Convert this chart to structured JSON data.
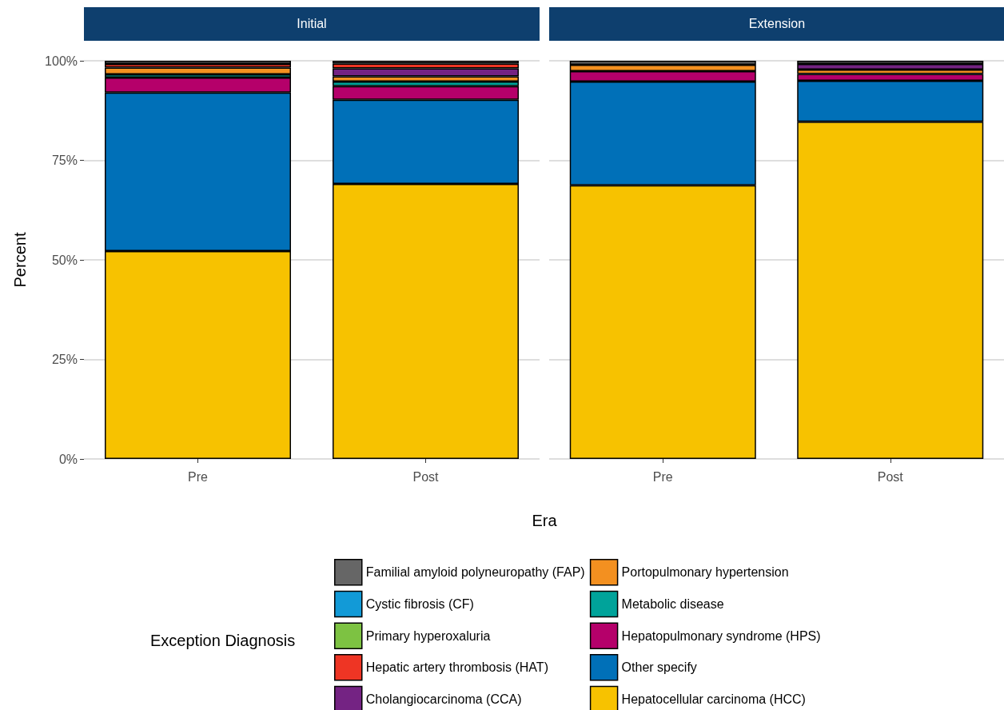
{
  "chart_data": [
    {
      "type": "bar",
      "title": "Initial",
      "xlabel": "Era",
      "ylabel": "Percent",
      "legend_title": "Exception Diagnosis",
      "categories": [
        "Pre",
        "Post"
      ],
      "stacked": true,
      "ylim": [
        0,
        100
      ],
      "yticks": [
        {
          "value": 0,
          "label": "0%"
        },
        {
          "value": 25,
          "label": "25%"
        },
        {
          "value": 50,
          "label": "50%"
        },
        {
          "value": 75,
          "label": "75%"
        },
        {
          "value": 100,
          "label": "100%"
        }
      ],
      "grid": "y",
      "legend": "bottom",
      "series": [
        {
          "name": "Hepatocellular carcinoma (HCC)",
          "color": "#f7c200",
          "values": [
            52.2,
            69.1
          ]
        },
        {
          "name": "Other specify",
          "color": "#0070b8",
          "values": [
            39.8,
            21.1
          ]
        },
        {
          "name": "Hepatopulmonary syndrome (HPS)",
          "color": "#b5006a",
          "values": [
            3.8,
            3.4
          ]
        },
        {
          "name": "Metabolic disease",
          "color": "#00a39a",
          "values": [
            0.8,
            1.2
          ]
        },
        {
          "name": "Portopulmonary hypertension",
          "color": "#f39020",
          "values": [
            1.7,
            1.3
          ]
        },
        {
          "name": "Cholangiocarcinoma (CCA)",
          "color": "#742383",
          "values": [
            null,
            2.0
          ]
        },
        {
          "name": "Hepatic artery thrombosis (HAT)",
          "color": "#ee3524",
          "values": [
            0.9,
            1.2
          ]
        },
        {
          "name": "Primary hyperoxaluria",
          "color": "#7dc242",
          "values": [
            null,
            null
          ]
        },
        {
          "name": "Cystic fibrosis (CF)",
          "color": "#129ad7",
          "values": [
            null,
            null
          ]
        },
        {
          "name": "Familial amyloid polyneuropathy (FAP)",
          "color": "#666666",
          "values": [
            0.8,
            0.7
          ]
        }
      ]
    },
    {
      "type": "bar",
      "title": "Extension",
      "categories": [
        "Pre",
        "Post"
      ],
      "stacked": true,
      "ylim": [
        0,
        100
      ],
      "yticks": [
        0,
        25,
        50,
        75,
        100
      ],
      "grid": "y",
      "tick_labels": "x",
      "series": [
        {
          "color": "#f7c200",
          "values": [
            68.7,
            84.7
          ]
        },
        {
          "color": "#0070b8",
          "values": [
            26.1,
            10.3
          ]
        },
        {
          "color": "#b5006a",
          "values": [
            2.6,
            1.7
          ]
        },
        {
          "color": "#f39020",
          "values": [
            1.6,
            1.1
          ]
        },
        {
          "color": "#742383",
          "values": [
            null,
            1.4
          ]
        },
        {
          "color": "#666666",
          "values": [
            1.0,
            0.8
          ]
        }
      ]
    }
  ]
}
